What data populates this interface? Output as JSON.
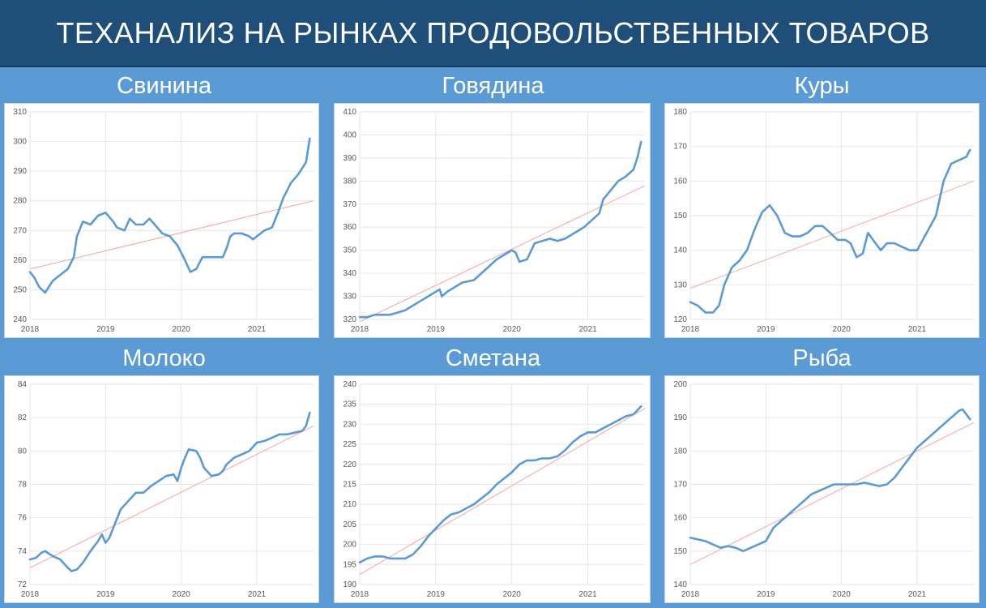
{
  "page_title": "ТЕХАНАЛИЗ НА РЫНКАХ ПРОДОВОЛЬСТВЕННЫХ ТОВАРОВ",
  "colors": {
    "title_bg": "#1f4e79",
    "band_bg": "#5b9bd5",
    "series": "#5b9bd5",
    "trend": "#f4a6a6"
  },
  "chart_data": [
    {
      "type": "line",
      "title": "Свинина",
      "x_ticks": [
        "2018",
        "2019",
        "2020",
        "2021"
      ],
      "x_range": [
        2018.0,
        2021.75
      ],
      "ylim": [
        240,
        310
      ],
      "y_ticks": [
        240,
        250,
        260,
        270,
        280,
        290,
        300,
        310
      ],
      "grid": true,
      "series": [
        {
          "x": [
            2018.0,
            2018.06,
            2018.12,
            2018.2,
            2018.3,
            2018.4,
            2018.5,
            2018.58,
            2018.62,
            2018.7,
            2018.8,
            2018.9,
            2019.0,
            2019.1,
            2019.15,
            2019.25,
            2019.32,
            2019.4,
            2019.5,
            2019.58,
            2019.65,
            2019.75,
            2019.85,
            2019.95,
            2020.05,
            2020.12,
            2020.2,
            2020.28,
            2020.35,
            2020.45,
            2020.55,
            2020.6,
            2020.65,
            2020.7,
            2020.8,
            2020.9,
            2020.95,
            2021.05,
            2021.1,
            2021.2,
            2021.28,
            2021.35,
            2021.45,
            2021.55,
            2021.65,
            2021.7
          ],
          "values": [
            256,
            254,
            251,
            249,
            253,
            255,
            257,
            261,
            268,
            273,
            272,
            275,
            276,
            273,
            271,
            270,
            274,
            272,
            272,
            274,
            272,
            269,
            268,
            265,
            260,
            256,
            257,
            261,
            261,
            261,
            261,
            264,
            268,
            269,
            269,
            268,
            267,
            269,
            270,
            271,
            276,
            281,
            286,
            289,
            293,
            301
          ]
        },
        {
          "values": [
            257,
            280
          ]
        }
      ]
    },
    {
      "type": "line",
      "title": "Говядина",
      "x_ticks": [
        "2018",
        "2019",
        "2020",
        "2021"
      ],
      "x_range": [
        2018.0,
        2021.75
      ],
      "ylim": [
        320,
        410
      ],
      "y_ticks": [
        320,
        330,
        340,
        350,
        360,
        370,
        380,
        390,
        400,
        410
      ],
      "grid": true,
      "series": [
        {
          "x": [
            2018.0,
            2018.1,
            2018.2,
            2018.3,
            2018.4,
            2018.5,
            2018.6,
            2018.7,
            2018.8,
            2018.9,
            2018.95,
            2019.05,
            2019.08,
            2019.15,
            2019.25,
            2019.35,
            2019.5,
            2019.6,
            2019.7,
            2019.8,
            2019.9,
            2020.0,
            2020.05,
            2020.1,
            2020.2,
            2020.3,
            2020.4,
            2020.5,
            2020.6,
            2020.7,
            2020.8,
            2020.9,
            2020.95,
            2021.05,
            2021.15,
            2021.2,
            2021.3,
            2021.4,
            2021.5,
            2021.6,
            2021.65,
            2021.7
          ],
          "values": [
            321,
            321,
            322,
            322,
            322,
            323,
            324,
            326,
            328,
            330,
            331,
            333,
            330,
            332,
            334,
            336,
            337,
            340,
            343,
            346,
            348,
            350,
            349,
            345,
            346,
            353,
            354,
            355,
            354,
            355,
            357,
            359,
            360,
            363,
            366,
            372,
            376,
            380,
            382,
            385,
            390,
            397
          ]
        },
        {
          "values": [
            319,
            378
          ]
        }
      ]
    },
    {
      "type": "line",
      "title": "Куры",
      "x_ticks": [
        "2018",
        "2019",
        "2020",
        "2021"
      ],
      "x_range": [
        2018.0,
        2021.75
      ],
      "ylim": [
        120,
        180
      ],
      "y_ticks": [
        120,
        130,
        140,
        150,
        160,
        170,
        180
      ],
      "grid": true,
      "series": [
        {
          "x": [
            2018.0,
            2018.1,
            2018.2,
            2018.3,
            2018.38,
            2018.45,
            2018.55,
            2018.65,
            2018.75,
            2018.85,
            2018.95,
            2019.05,
            2019.15,
            2019.25,
            2019.35,
            2019.45,
            2019.55,
            2019.65,
            2019.75,
            2019.85,
            2019.95,
            2020.05,
            2020.12,
            2020.2,
            2020.28,
            2020.35,
            2020.45,
            2020.52,
            2020.6,
            2020.7,
            2020.8,
            2020.9,
            2021.0,
            2021.05,
            2021.1,
            2021.15,
            2021.25,
            2021.35,
            2021.45,
            2021.55,
            2021.65,
            2021.7
          ],
          "values": [
            125,
            124,
            122,
            122,
            124,
            130,
            135,
            137,
            140,
            146,
            151,
            153,
            150,
            145,
            144,
            144,
            145,
            147,
            147,
            145,
            143,
            143,
            142,
            138,
            139,
            145,
            142,
            140,
            142,
            142,
            141,
            140,
            140,
            142,
            144,
            146,
            150,
            160,
            165,
            166,
            167,
            169
          ]
        },
        {
          "values": [
            129,
            160
          ]
        }
      ]
    },
    {
      "type": "line",
      "title": "Молоко",
      "x_ticks": [
        "2018",
        "2019",
        "2020",
        "2021"
      ],
      "x_range": [
        2018.0,
        2021.75
      ],
      "ylim": [
        72,
        84
      ],
      "y_ticks": [
        72,
        74,
        76,
        78,
        80,
        82,
        84
      ],
      "grid": true,
      "series": [
        {
          "x": [
            2018.0,
            2018.08,
            2018.15,
            2018.2,
            2018.3,
            2018.4,
            2018.5,
            2018.55,
            2018.62,
            2018.7,
            2018.8,
            2018.9,
            2018.95,
            2019.0,
            2019.05,
            2019.12,
            2019.2,
            2019.3,
            2019.4,
            2019.5,
            2019.6,
            2019.7,
            2019.8,
            2019.9,
            2019.95,
            2020.0,
            2020.05,
            2020.1,
            2020.2,
            2020.25,
            2020.3,
            2020.4,
            2020.5,
            2020.55,
            2020.6,
            2020.7,
            2020.8,
            2020.9,
            2021.0,
            2021.1,
            2021.2,
            2021.3,
            2021.4,
            2021.5,
            2021.6,
            2021.65,
            2021.7
          ],
          "values": [
            73.5,
            73.6,
            73.9,
            74.0,
            73.7,
            73.5,
            73.0,
            72.8,
            72.9,
            73.3,
            74.0,
            74.6,
            75.0,
            74.5,
            74.8,
            75.6,
            76.5,
            77.0,
            77.5,
            77.5,
            77.9,
            78.2,
            78.5,
            78.6,
            78.2,
            79.0,
            79.6,
            80.1,
            80.0,
            79.6,
            79.0,
            78.5,
            78.6,
            78.8,
            79.2,
            79.6,
            79.8,
            80.0,
            80.5,
            80.6,
            80.8,
            81.0,
            81.0,
            81.1,
            81.2,
            81.5,
            82.3
          ]
        },
        {
          "values": [
            73.0,
            81.5
          ]
        }
      ]
    },
    {
      "type": "line",
      "title": "Сметана",
      "x_ticks": [
        "2018",
        "2019",
        "2020",
        "2021"
      ],
      "x_range": [
        2018.0,
        2021.75
      ],
      "ylim": [
        190,
        240
      ],
      "y_ticks": [
        190,
        195,
        200,
        205,
        210,
        215,
        220,
        225,
        230,
        235,
        240
      ],
      "grid": true,
      "series": [
        {
          "x": [
            2018.0,
            2018.1,
            2018.2,
            2018.3,
            2018.4,
            2018.5,
            2018.6,
            2018.7,
            2018.8,
            2018.9,
            2019.0,
            2019.1,
            2019.2,
            2019.3,
            2019.4,
            2019.5,
            2019.6,
            2019.7,
            2019.8,
            2019.9,
            2020.0,
            2020.1,
            2020.2,
            2020.3,
            2020.4,
            2020.5,
            2020.6,
            2020.7,
            2020.8,
            2020.9,
            2021.0,
            2021.1,
            2021.2,
            2021.3,
            2021.4,
            2021.5,
            2021.6,
            2021.7
          ],
          "values": [
            195.5,
            196.5,
            197.0,
            197.0,
            196.5,
            196.5,
            196.5,
            197.5,
            199.5,
            202.0,
            204.0,
            206.0,
            207.5,
            208.0,
            209.0,
            210.0,
            211.5,
            213.0,
            215.0,
            216.5,
            218.0,
            220.0,
            221.0,
            221.0,
            221.5,
            221.5,
            222.0,
            223.5,
            225.5,
            227.0,
            228.0,
            228.0,
            229.0,
            230.0,
            231.0,
            232.0,
            232.5,
            234.5
          ]
        },
        {
          "values": [
            192.5,
            234.0
          ]
        }
      ]
    },
    {
      "type": "line",
      "title": "Рыба",
      "x_ticks": [
        "2018",
        "2019",
        "2020",
        "2021"
      ],
      "x_range": [
        2018.0,
        2021.75
      ],
      "ylim": [
        140,
        200
      ],
      "y_ticks": [
        140,
        150,
        160,
        170,
        180,
        190,
        200
      ],
      "grid": true,
      "series": [
        {
          "x": [
            2018.0,
            2018.1,
            2018.2,
            2018.3,
            2018.4,
            2018.5,
            2018.6,
            2018.7,
            2018.8,
            2018.9,
            2019.0,
            2019.1,
            2019.2,
            2019.3,
            2019.4,
            2019.5,
            2019.6,
            2019.7,
            2019.8,
            2019.9,
            2020.0,
            2020.1,
            2020.2,
            2020.3,
            2020.4,
            2020.5,
            2020.6,
            2020.7,
            2020.8,
            2020.9,
            2021.0,
            2021.1,
            2021.2,
            2021.3,
            2021.4,
            2021.5,
            2021.55,
            2021.6,
            2021.65,
            2021.7
          ],
          "values": [
            154,
            153.5,
            153,
            152,
            151,
            151.5,
            151,
            150,
            151,
            152,
            153,
            157,
            159,
            161,
            163,
            165,
            167,
            168,
            169,
            170,
            170,
            170,
            170,
            170.5,
            170,
            169.5,
            170,
            172,
            175,
            178,
            181,
            183,
            185,
            187,
            189,
            191,
            192,
            192.5,
            191,
            189.5
          ]
        },
        {
          "values": [
            146,
            188.5
          ]
        }
      ]
    }
  ]
}
